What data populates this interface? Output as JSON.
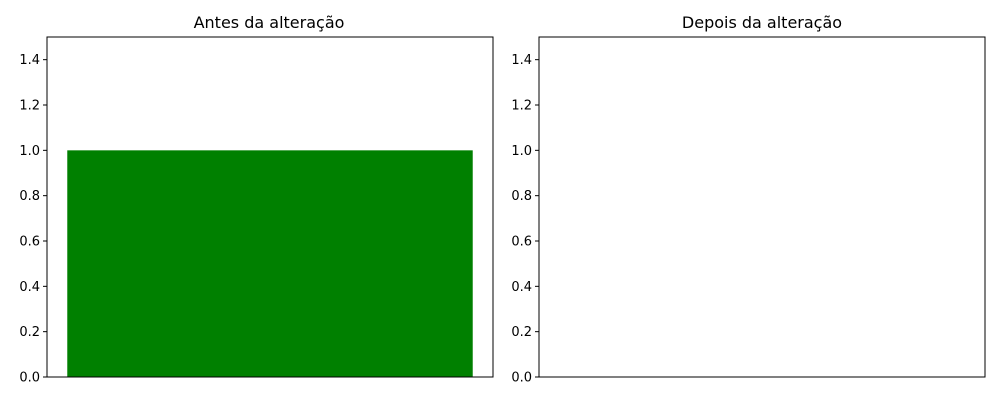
{
  "chart_data": [
    {
      "type": "bar",
      "title": "Antes da alteração",
      "categories": [
        ""
      ],
      "values": [
        1.0
      ],
      "bar_color": "#008000",
      "ylim": [
        0,
        1.5
      ],
      "yticks": [
        "0.0",
        "0.2",
        "0.4",
        "0.6",
        "0.8",
        "1.0",
        "1.2",
        "1.4"
      ],
      "xlabel": "",
      "ylabel": "",
      "grid": false
    },
    {
      "type": "bar",
      "title": "Depois da alteração",
      "categories": [],
      "values": [],
      "bar_color": "#008000",
      "ylim": [
        0,
        1.5
      ],
      "yticks": [
        "0.0",
        "0.2",
        "0.4",
        "0.6",
        "0.8",
        "1.0",
        "1.2",
        "1.4"
      ],
      "xlabel": "",
      "ylabel": "",
      "grid": false
    }
  ]
}
